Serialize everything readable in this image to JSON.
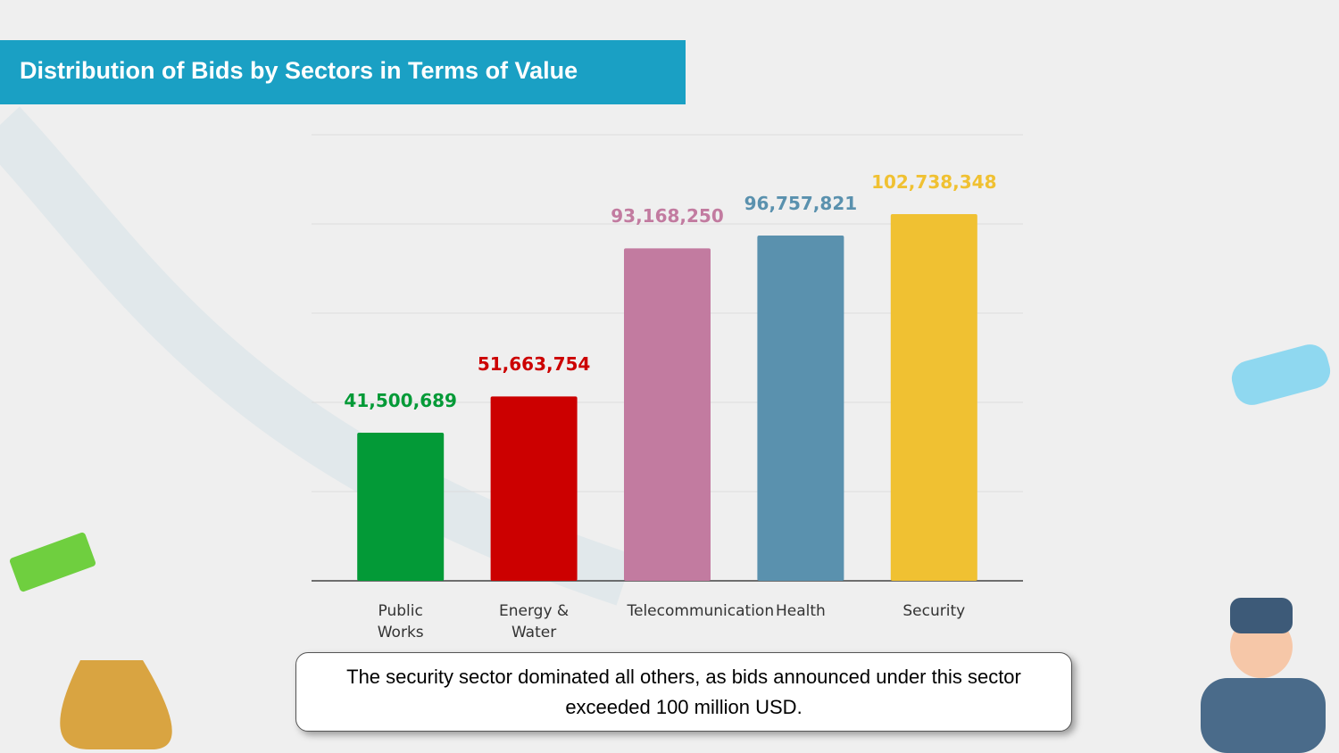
{
  "chart_data": {
    "type": "bar",
    "title": "Distribution of Bids by Sectors in Terms of Value",
    "categories": [
      "Public Works",
      "Energy & Water",
      "Telecommunication",
      "Health",
      "Security"
    ],
    "values": [
      41500689,
      51663754,
      93168250,
      96757821,
      102738348
    ],
    "value_labels": [
      "41,500,689",
      "51,663,754",
      "93,168,250",
      "96,757,821",
      "102,738,348"
    ],
    "colors": [
      "#039a37",
      "#cc0000",
      "#c27ba0",
      "#5a91ae",
      "#f0c132"
    ],
    "ylim": [
      0,
      125000000
    ],
    "yticks": [
      0,
      25000000,
      50000000,
      75000000,
      100000000,
      125000000
    ],
    "grid": true,
    "annotation": "The security sector dominated all others, as bids announced under this sector exceeded 100 million USD."
  }
}
